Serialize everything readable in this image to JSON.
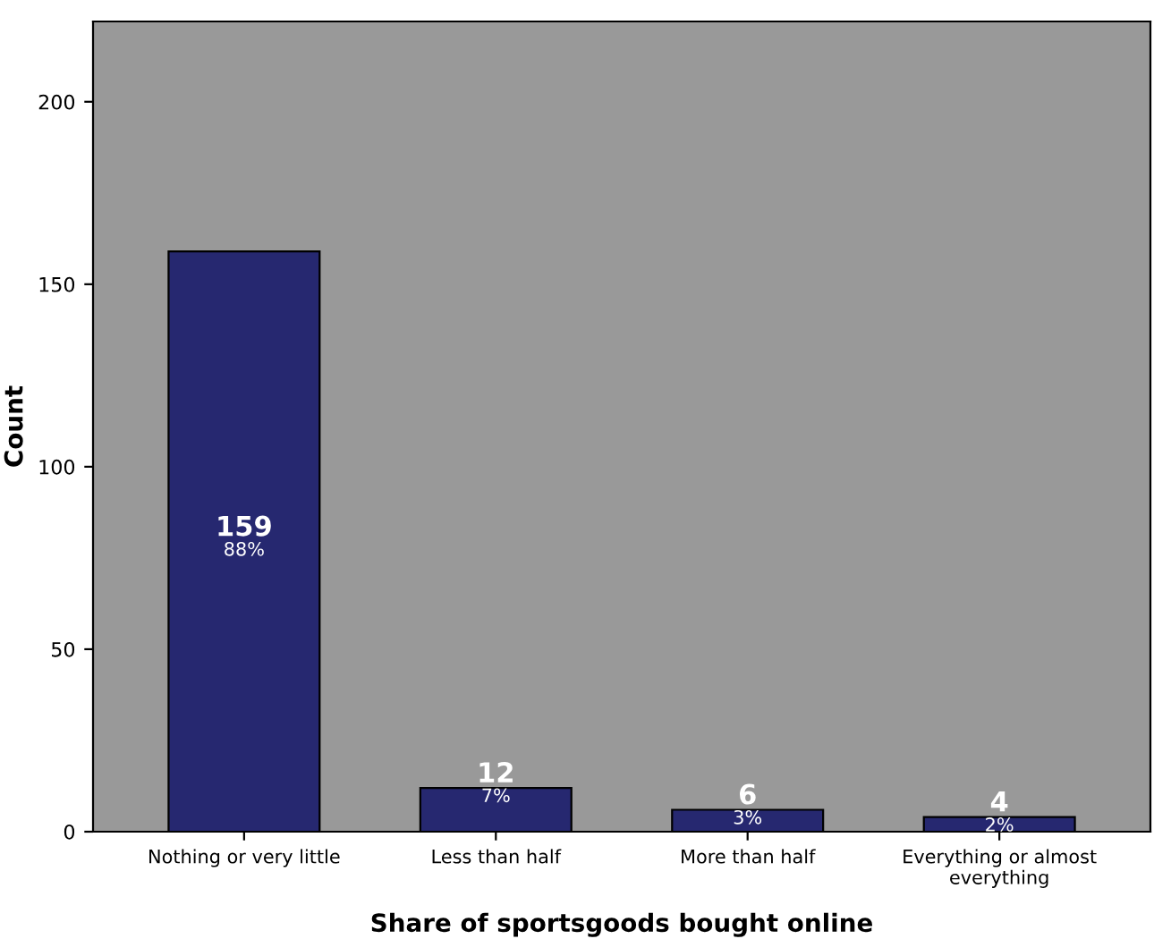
{
  "chart_data": {
    "type": "bar",
    "xlabel": "Share of sportsgoods bought online",
    "ylabel": "Count",
    "categories": [
      "Nothing or very little",
      "Less than half",
      "More than half",
      "Everything or almost\neverything"
    ],
    "values": [
      159,
      12,
      6,
      4
    ],
    "value_labels": [
      "159\n88%",
      "12\n7%",
      "6\n3%",
      "4\n2%"
    ],
    "color": "#262870",
    "ylim": [
      0,
      222
    ],
    "yticks": [
      0,
      50,
      100,
      150,
      200
    ],
    "grid": false
  }
}
